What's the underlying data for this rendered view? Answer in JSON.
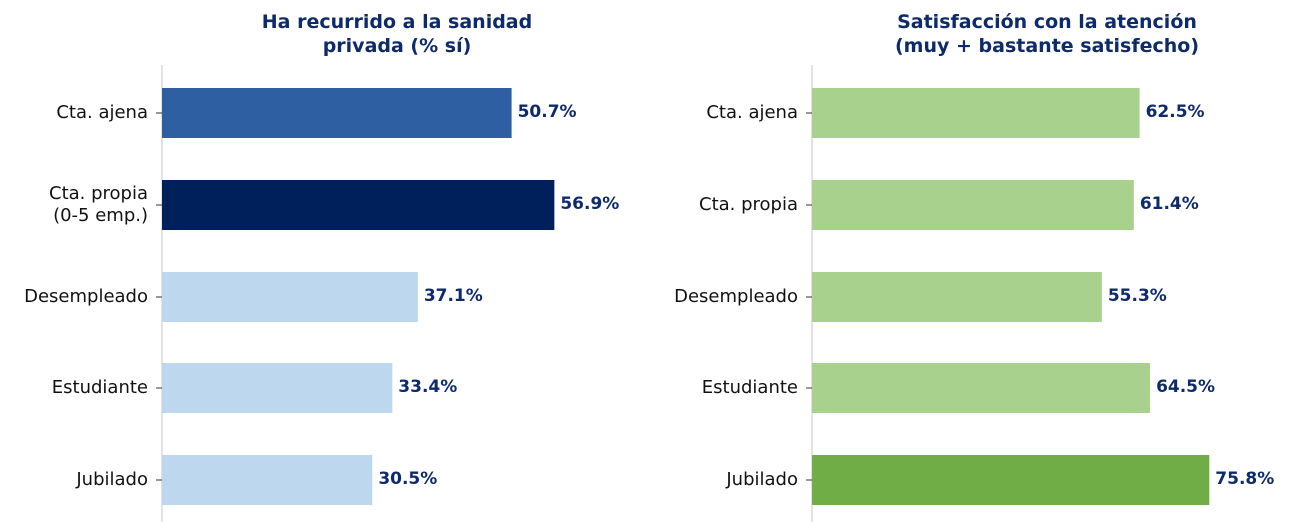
{
  "chart_data": [
    {
      "type": "barh",
      "title": "Ha recurrido a la sanidad\nprivada (% sí)",
      "categories": [
        "Cta. ajena",
        "Cta. propia\n(0-5 emp.)",
        "Desempleado",
        "Estudiante",
        "Jubilado"
      ],
      "values": [
        50.7,
        56.9,
        37.1,
        33.4,
        30.5
      ],
      "value_labels": [
        "50.7%",
        "56.9%",
        "37.1%",
        "33.4%",
        "30.5%"
      ],
      "colors": [
        "#2e5fa3",
        "#00205b",
        "#bdd7ee",
        "#bdd7ee",
        "#bdd7ee"
      ],
      "xlim": [
        0,
        67
      ]
    },
    {
      "type": "barh",
      "title": "Satisfacción con la atención\n(muy + bastante satisfecho)",
      "categories": [
        "Cta. ajena",
        "Cta. propia",
        "Desempleado",
        "Estudiante",
        "Jubilado"
      ],
      "values": [
        62.5,
        61.4,
        55.3,
        64.5,
        75.8
      ],
      "value_labels": [
        "62.5%",
        "61.4%",
        "55.3%",
        "64.5%",
        "75.8%"
      ],
      "colors": [
        "#a9d18e",
        "#a9d18e",
        "#a9d18e",
        "#a9d18e",
        "#70ad47"
      ],
      "xlim": [
        0,
        87
      ]
    }
  ]
}
